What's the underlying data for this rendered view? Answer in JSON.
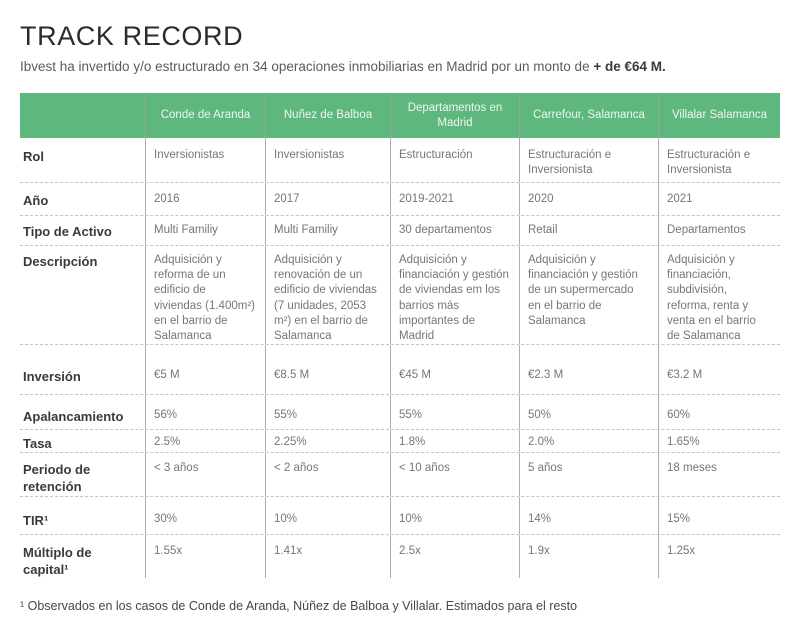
{
  "title": "TRACK RECORD",
  "subtitle": {
    "text": "Ibvest ha invertido y/o estructurado en 34 operaciones inmobiliarias en Madrid por un monto de",
    "bold": "+ de €64 M."
  },
  "table": {
    "columns": [
      "Conde de Aranda",
      "Nuñez de Balboa",
      "Departamentos en Madrid",
      "Carrefour, Salamanca",
      "Villalar Salamanca"
    ],
    "rows": [
      {
        "label": "Rol",
        "values": [
          "Inversionistas",
          "Inversionistas",
          "Estructuración",
          "Estructuración e Inversionista",
          "Estructuración e Inversionista"
        ]
      },
      {
        "label": "Año",
        "values": [
          "2016",
          "2017",
          "2019-2021",
          "2020",
          "2021"
        ]
      },
      {
        "label": "Tipo de Activo",
        "values": [
          "Multi Familiy",
          "Multi Familiy",
          "30 departamentos",
          "Retail",
          "Departamentos"
        ]
      },
      {
        "label": "Descripción",
        "values": [
          "Adquisición y reforma de un edificio de viviendas (1.400m²) en el barrio de Salamanca",
          "Adquisición y renovación de un edificio de viviendas (7 unidades, 2053 m²) en el barrio de Salamanca",
          "Adquisición y financiación y gestión de viviendas em los barrios más importantes de Madrid",
          "Adquisición y financiación y gestión de un supermercado en el barrio de Salamanca",
          "Adquisición y financiación, subdivisión, reforma, renta y venta en el barrio de Salamanca"
        ]
      },
      {
        "label": "Inversión",
        "values": [
          "€5 M",
          "€8.5 M",
          "€45 M",
          "€2.3 M",
          "€3.2 M"
        ]
      },
      {
        "label": "Apalancamiento",
        "values": [
          "56%",
          "55%",
          "55%",
          "50%",
          "60%"
        ]
      },
      {
        "label": "Tasa",
        "values": [
          "2.5%",
          "2.25%",
          "1.8%",
          "2.0%",
          "1.65%"
        ]
      },
      {
        "label": "Periodo de retención",
        "values": [
          "< 3 años",
          "< 2 años",
          "< 10 años",
          "5 años",
          "18 meses"
        ]
      },
      {
        "label": "TIR¹",
        "values": [
          "30%",
          "10%",
          "10%",
          "14%",
          "15%"
        ]
      },
      {
        "label": "Múltiplo de capital¹",
        "values": [
          "1.55x",
          "1.41x",
          "2.5x",
          "1.9x",
          "1.25x"
        ]
      }
    ]
  },
  "footnote": "¹ Observados en los casos de Conde de Aranda, Núñez de Balboa y Villalar. Estimados para el resto",
  "colors": {
    "header_green": "#5eb87d"
  }
}
